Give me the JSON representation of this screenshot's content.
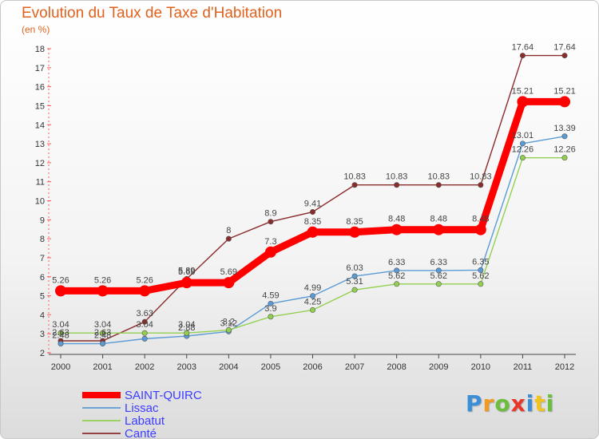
{
  "chart_data": {
    "type": "line",
    "title": "Evolution du Taux de Taxe d'Habitation",
    "ylabel": "(en %)",
    "xlabel": "",
    "ylim": [
      2,
      18
    ],
    "yticks": [
      2,
      3,
      4,
      5,
      6,
      7,
      8,
      9,
      10,
      11,
      12,
      13,
      14,
      15,
      16,
      17,
      18
    ],
    "categories": [
      "2000",
      "2001",
      "2002",
      "2003",
      "2004",
      "2005",
      "2006",
      "2007",
      "2008",
      "2009",
      "2010",
      "2011",
      "2012"
    ],
    "grid": false,
    "legend_position": "bottom-left",
    "series": [
      {
        "name": "SAINT-QUIRC",
        "color": "#ff0000",
        "values": [
          5.26,
          5.26,
          5.26,
          5.69,
          5.69,
          7.3,
          8.35,
          8.35,
          8.48,
          8.48,
          8.48,
          15.21,
          15.21
        ],
        "labels": [
          "5.26",
          "5.26",
          "5.26",
          "5.69",
          "5.69",
          "7.3",
          "8.35",
          "8.35",
          "8.48",
          "8.48",
          "8.48",
          "15.21",
          "15.21"
        ]
      },
      {
        "name": "Lissac",
        "color": "#5b9bd5",
        "values": [
          2.48,
          2.48,
          2.74,
          2.88,
          3.12,
          4.59,
          4.99,
          6.03,
          6.33,
          6.33,
          6.35,
          13.01,
          13.39
        ],
        "labels": [
          "2.48",
          "2.48",
          "",
          "2.88",
          "3.12",
          "4.59",
          "4.99",
          "6.03",
          "6.33",
          "6.33",
          "6.35",
          "13.01",
          "13.39"
        ]
      },
      {
        "name": "Labatut",
        "color": "#92d050",
        "values": [
          3.04,
          3.04,
          3.04,
          3.04,
          3.2,
          3.9,
          4.25,
          5.31,
          5.62,
          5.62,
          5.62,
          12.26,
          12.26
        ],
        "labels": [
          "3.04",
          "3.04",
          "3.04",
          "3.04",
          "3.2",
          "3.9",
          "4.25",
          "5.31",
          "5.62",
          "5.62",
          "5.62",
          "12.26",
          "12.26"
        ]
      },
      {
        "name": "Canté",
        "color": "#8b2c2c",
        "values": [
          2.63,
          2.63,
          3.63,
          5.89,
          8.0,
          8.9,
          9.41,
          10.83,
          10.83,
          10.83,
          10.83,
          17.64,
          17.64
        ],
        "labels": [
          "2.63",
          "2.63",
          "3.63",
          "5.89",
          "8",
          "8.9",
          "9.41",
          "10.83",
          "10.83",
          "10.83",
          "10.83",
          "17.64",
          "17.64"
        ]
      }
    ]
  },
  "logo": {
    "text": "Proxiti",
    "letters": [
      {
        "ch": "P",
        "color": "#3b8fd8"
      },
      {
        "ch": "r",
        "color": "#f29a1d"
      },
      {
        "ch": "o",
        "color": "#6cbf3c"
      },
      {
        "ch": "x",
        "color": "#e8362a"
      },
      {
        "ch": "i",
        "color": "#3b8fd8"
      },
      {
        "ch": "t",
        "color": "#f2c21d"
      },
      {
        "ch": "i",
        "color": "#6cbf3c"
      }
    ]
  }
}
